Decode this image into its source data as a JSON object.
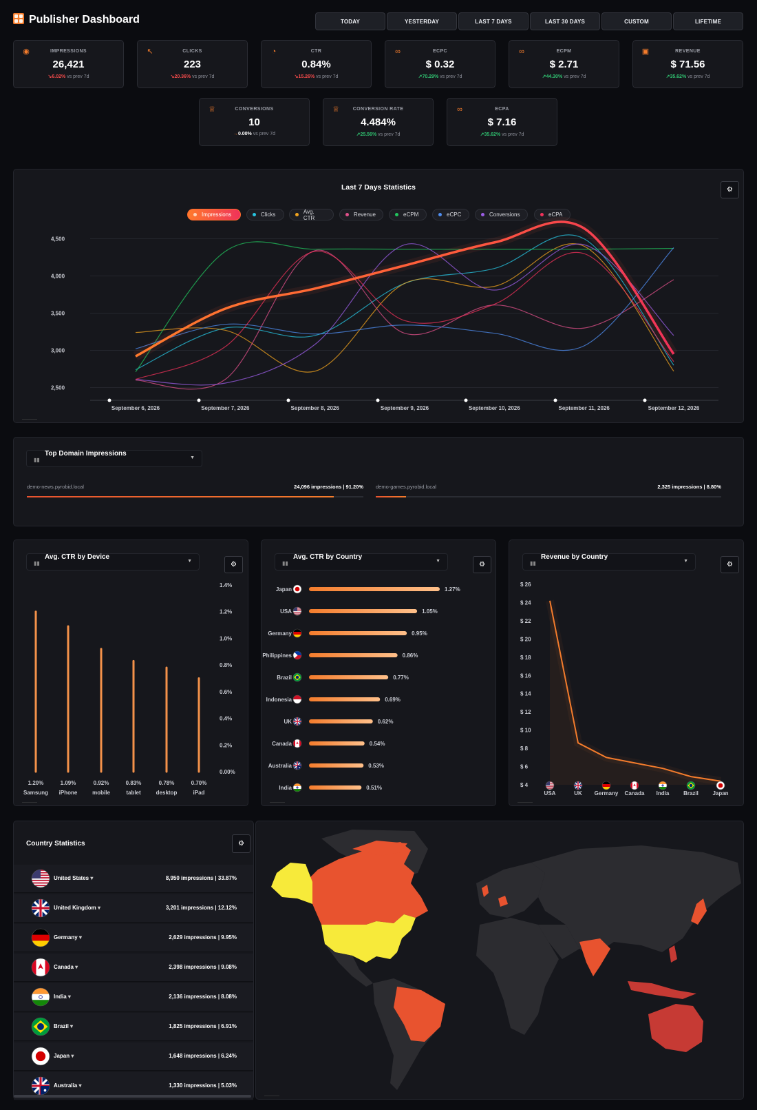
{
  "header": {
    "title": "Publisher Dashboard",
    "ranges": [
      "TODAY",
      "YESTERDAY",
      "LAST 7 DAYS",
      "LAST 30 DAYS",
      "CUSTOM",
      "LIFETIME"
    ]
  },
  "kpis": [
    {
      "label": "IMPRESSIONS",
      "value": "26,421",
      "change": "6.02%",
      "trend": "down",
      "suffix": "vs prev 7d",
      "icon": "eye-icon"
    },
    {
      "label": "CLICKS",
      "value": "223",
      "change": "20.36%",
      "trend": "down",
      "suffix": "vs prev 7d",
      "icon": "cursor-click-icon"
    },
    {
      "label": "CTR",
      "value": "0.84%",
      "change": "15.26%",
      "trend": "down",
      "suffix": "vs prev 7d",
      "icon": "pie-icon"
    },
    {
      "label": "ECPC",
      "value": "$ 0.32",
      "change": "70.29%",
      "trend": "up",
      "suffix": "vs prev 7d",
      "icon": "money-icon"
    },
    {
      "label": "ECPM",
      "value": "$ 2.71",
      "change": "44.30%",
      "trend": "up",
      "suffix": "vs prev 7d",
      "icon": "money-icon"
    },
    {
      "label": "REVENUE",
      "value": "$ 71.56",
      "change": "35.62%",
      "trend": "up",
      "suffix": "vs prev 7d",
      "icon": "cash-icon"
    },
    {
      "label": "CONVERSIONS",
      "value": "10",
      "change": "0.00%",
      "trend": "flat",
      "suffix": "vs prev 7d",
      "icon": "trophy-icon"
    },
    {
      "label": "CONVERSION RATE",
      "value": "4.484%",
      "change": "25.56%",
      "trend": "up",
      "suffix": "vs prev 7d",
      "icon": "trophy-icon"
    },
    {
      "label": "ECPA",
      "value": "$ 7.16",
      "change": "35.62%",
      "trend": "up",
      "suffix": "vs prev 7d",
      "icon": "money-icon"
    }
  ],
  "trend_chart": {
    "title": "Last 7 Days Statistics",
    "legend": [
      {
        "name": "Impressions",
        "color": "#ff6a2c",
        "active": true
      },
      {
        "name": "Clicks",
        "color": "#27c4e0"
      },
      {
        "name": "Avg. CTR",
        "color": "#f0a31e"
      },
      {
        "name": "Revenue",
        "color": "#e0508a"
      },
      {
        "name": "eCPM",
        "color": "#22c55e"
      },
      {
        "name": "eCPC",
        "color": "#4f8ef0"
      },
      {
        "name": "Conversions",
        "color": "#9b5de5"
      },
      {
        "name": "eCPA",
        "color": "#f0325a"
      }
    ],
    "y_ticks": [
      "4,500",
      "4,000",
      "3,500",
      "3,000",
      "2,500"
    ],
    "x_labels": [
      "September 6, 2026",
      "September 7, 2026",
      "September 8, 2026",
      "September 9, 2026",
      "September 10, 2026",
      "September 11, 2026",
      "September 12, 2026"
    ]
  },
  "chart_data": [
    {
      "type": "line",
      "title": "Last 7 Days Statistics",
      "x": [
        "September 6, 2026",
        "September 7, 2026",
        "September 8, 2026",
        "September 9, 2026",
        "September 10, 2026",
        "September 11, 2026",
        "September 12, 2026"
      ],
      "ylim": [
        2500,
        4650
      ],
      "series": [
        {
          "name": "Impressions",
          "values": [
            2920,
            3560,
            3830,
            4140,
            4450,
            4640,
            2950
          ]
        },
        {
          "name": "Clicks",
          "values": [
            2740,
            3300,
            3200,
            3900,
            4100,
            4500,
            2800
          ]
        },
        {
          "name": "Avg. CTR",
          "values": [
            3240,
            3270,
            2720,
            3900,
            3860,
            4400,
            2720
          ]
        },
        {
          "name": "Revenue",
          "values": [
            2600,
            2610,
            4340,
            3230,
            3610,
            3300,
            3950
          ]
        },
        {
          "name": "eCPM",
          "values": [
            2710,
            4330,
            4360,
            4360,
            4360,
            4360,
            4370
          ]
        },
        {
          "name": "eCPC",
          "values": [
            3020,
            3350,
            3220,
            3340,
            3230,
            3060,
            4380
          ]
        },
        {
          "name": "Conversions",
          "values": [
            2610,
            2560,
            3080,
            4420,
            3810,
            4420,
            3200
          ]
        },
        {
          "name": "eCPA",
          "values": [
            2610,
            3050,
            4330,
            3400,
            3620,
            4300,
            2850
          ]
        }
      ]
    },
    {
      "type": "bar",
      "title": "Avg. CTR by Device",
      "categories": [
        "Samsung",
        "iPhone",
        "mobile",
        "tablet",
        "desktop",
        "iPad"
      ],
      "values": [
        1.2,
        1.09,
        0.92,
        0.83,
        0.78,
        0.7
      ],
      "ylim": [
        0,
        1.4
      ]
    },
    {
      "type": "bar",
      "title": "Avg. CTR by Country",
      "categories": [
        "Japan",
        "USA",
        "Germany",
        "Philippines",
        "Brazil",
        "Indonesia",
        "UK",
        "Canada",
        "Australia",
        "India"
      ],
      "values": [
        1.27,
        1.05,
        0.95,
        0.86,
        0.77,
        0.69,
        0.62,
        0.54,
        0.53,
        0.51
      ]
    },
    {
      "type": "line",
      "title": "Revenue by Country",
      "categories": [
        "USA",
        "UK",
        "Germany",
        "Canada",
        "India",
        "Brazil",
        "Japan"
      ],
      "values": [
        24.2,
        8.6,
        7.0,
        6.4,
        5.8,
        4.9,
        4.4
      ],
      "ylim": [
        4,
        26
      ]
    }
  ],
  "domains": {
    "title": "Top Domain Impressions",
    "items": [
      {
        "name": "demo-news.pyrobid.local",
        "value": "24,096 impressions | 91.20%",
        "share": 0.912
      },
      {
        "name": "demo-games.pyrobid.local",
        "value": "2,325 impressions | 8.80%",
        "share": 0.088
      }
    ]
  },
  "device_ctr": {
    "title": "Avg. CTR by Device",
    "y_ticks": [
      "1.4%",
      "1.2%",
      "1.0%",
      "0.8%",
      "0.6%",
      "0.4%",
      "0.2%",
      "0.00%"
    ],
    "items": [
      {
        "label": "Samsung",
        "value": "1.20%"
      },
      {
        "label": "iPhone",
        "value": "1.09%"
      },
      {
        "label": "mobile",
        "value": "0.92%"
      },
      {
        "label": "tablet",
        "value": "0.83%"
      },
      {
        "label": "desktop",
        "value": "0.78%"
      },
      {
        "label": "iPad",
        "value": "0.70%"
      }
    ]
  },
  "country_ctr": {
    "title": "Avg. CTR by Country",
    "items": [
      {
        "label": "Japan",
        "value": "1.27%",
        "flag": "jp"
      },
      {
        "label": "USA",
        "value": "1.05%",
        "flag": "us"
      },
      {
        "label": "Germany",
        "value": "0.95%",
        "flag": "de"
      },
      {
        "label": "Philippines",
        "value": "0.86%",
        "flag": "ph"
      },
      {
        "label": "Brazil",
        "value": "0.77%",
        "flag": "br"
      },
      {
        "label": "Indonesia",
        "value": "0.69%",
        "flag": "id"
      },
      {
        "label": "UK",
        "value": "0.62%",
        "flag": "gb"
      },
      {
        "label": "Canada",
        "value": "0.54%",
        "flag": "ca"
      },
      {
        "label": "Australia",
        "value": "0.53%",
        "flag": "au"
      },
      {
        "label": "India",
        "value": "0.51%",
        "flag": "in"
      }
    ]
  },
  "revenue_country": {
    "title": "Revenue by Country",
    "y_ticks": [
      "$ 26",
      "$ 24",
      "$ 22",
      "$ 20",
      "$ 18",
      "$ 16",
      "$ 14",
      "$ 12",
      "$ 10",
      "$ 8",
      "$ 6",
      "$ 4"
    ],
    "x_labels": [
      "USA",
      "UK",
      "Germany",
      "Canada",
      "India",
      "Brazil",
      "Japan"
    ],
    "flags": [
      "us",
      "gb",
      "de",
      "ca",
      "in",
      "br",
      "jp"
    ]
  },
  "country_stats": {
    "title": "Country Statistics",
    "rows": [
      {
        "name": "United States",
        "value": "8,950 impressions | 33.87%",
        "flag": "us"
      },
      {
        "name": "United Kingdom",
        "value": "3,201 impressions | 12.12%",
        "flag": "gb"
      },
      {
        "name": "Germany",
        "value": "2,629 impressions | 9.95%",
        "flag": "de"
      },
      {
        "name": "Canada",
        "value": "2,398 impressions | 9.08%",
        "flag": "ca"
      },
      {
        "name": "India",
        "value": "2,136 impressions | 8.08%",
        "flag": "in"
      },
      {
        "name": "Brazil",
        "value": "1,825 impressions | 6.91%",
        "flag": "br"
      },
      {
        "name": "Japan",
        "value": "1,648 impressions | 6.24%",
        "flag": "jp"
      },
      {
        "name": "Australia",
        "value": "1,330 impressions | 5.03%",
        "flag": "au"
      }
    ]
  },
  "map": {
    "highlight_color": "#f7ea3a",
    "mid_color": "#e8532f",
    "low_color": "#c63a34",
    "land_color": "#2c2c30"
  }
}
